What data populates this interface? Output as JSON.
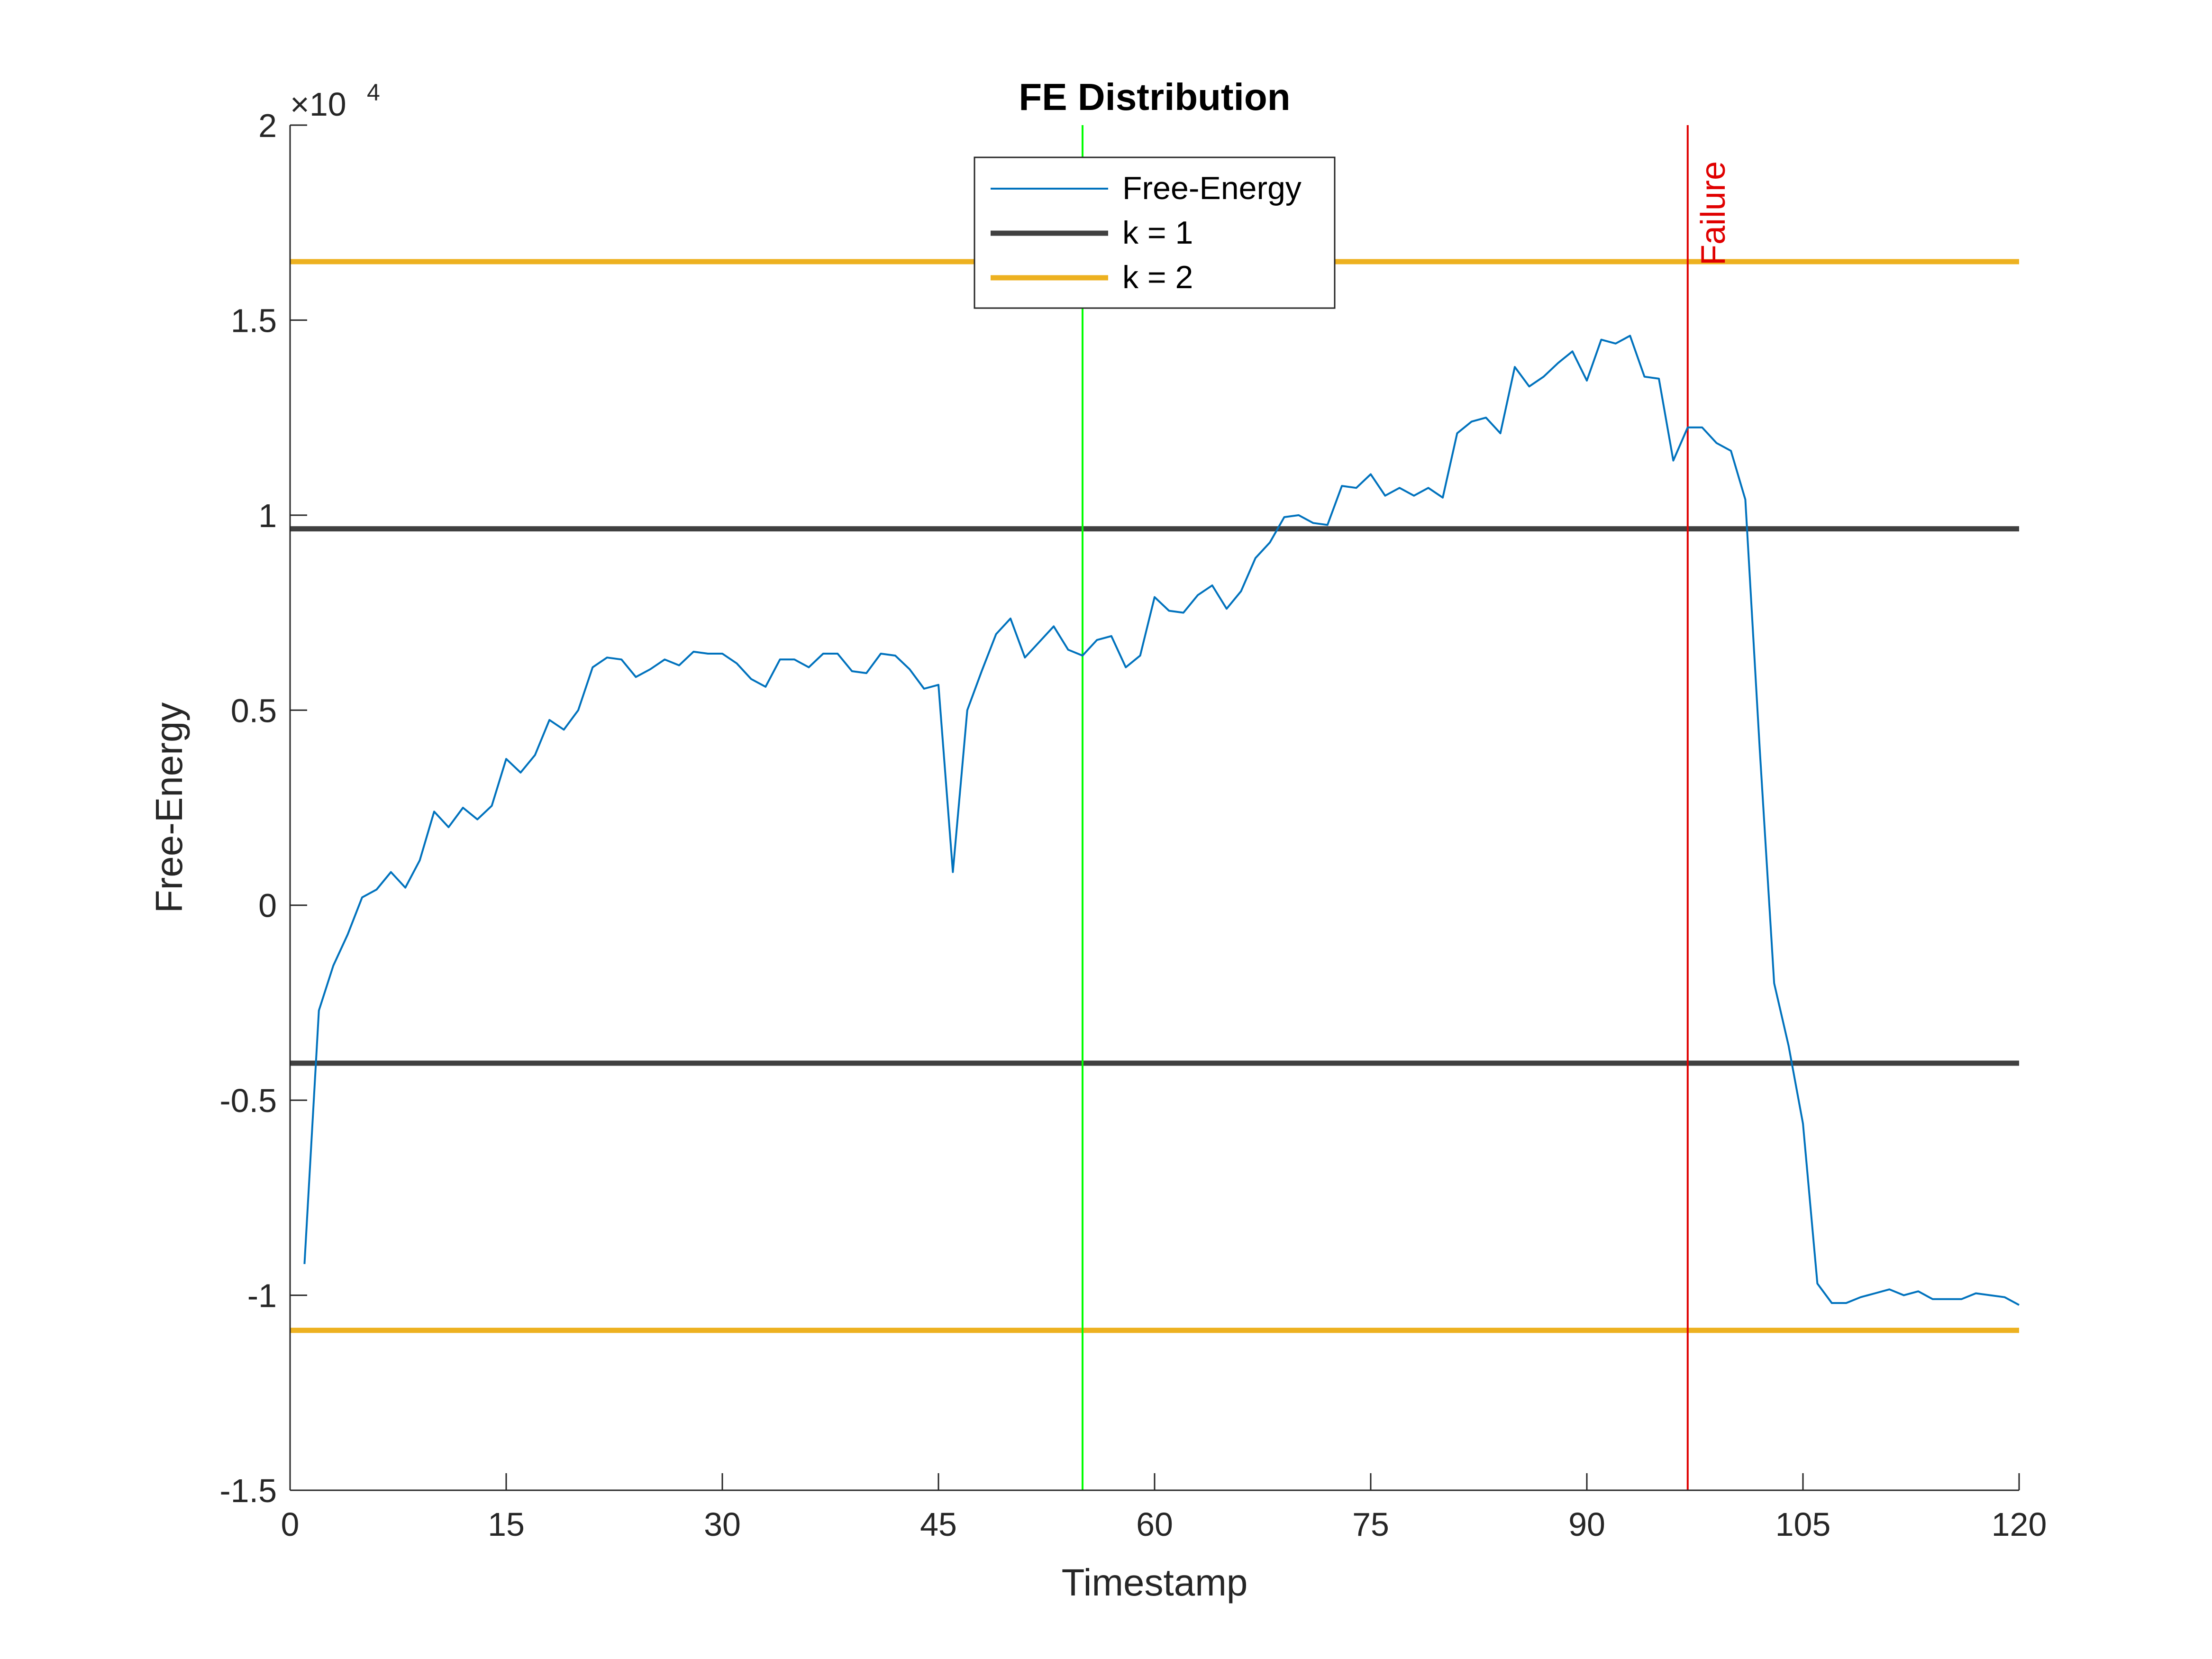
{
  "chart_data": {
    "type": "line",
    "title": "FE Distribution",
    "xlabel": "Timestamp",
    "ylabel": "Free-Energy",
    "exponent_label": "×10",
    "exponent_power": "4",
    "xlim": [
      0,
      120
    ],
    "ylim": [
      -15000,
      20000
    ],
    "xticks": [
      0,
      15,
      30,
      45,
      60,
      75,
      90,
      105,
      120
    ],
    "yticks": [
      -15000,
      -10000,
      -5000,
      0,
      5000,
      10000,
      15000,
      20000
    ],
    "ytick_labels": [
      "-1.5",
      "-1",
      "-0.5",
      "0",
      "0.5",
      "1",
      "1.5",
      "2"
    ],
    "grid": false,
    "legend_position": "top-center",
    "legend": [
      {
        "label": "Free-Energy",
        "color": "#0072BD",
        "style": "thin"
      },
      {
        "label": "k = 1",
        "color": "#404040",
        "style": "thick"
      },
      {
        "label": "k = 2",
        "color": "#EDB120",
        "style": "thick"
      }
    ],
    "series": [
      {
        "name": "Free-Energy",
        "color": "#0072BD",
        "x": [
          1,
          2,
          3,
          4,
          5,
          6,
          7,
          8,
          9,
          10,
          11,
          12,
          13,
          14,
          15,
          16,
          17,
          18,
          19,
          20,
          21,
          22,
          23,
          24,
          25,
          26,
          27,
          28,
          29,
          30,
          31,
          32,
          33,
          34,
          35,
          36,
          37,
          38,
          39,
          40,
          41,
          42,
          43,
          44,
          45,
          46,
          47,
          48,
          49,
          50,
          51,
          52,
          53,
          54,
          55,
          56,
          57,
          58,
          59,
          60,
          61,
          62,
          63,
          64,
          65,
          66,
          67,
          68,
          69,
          70,
          71,
          72,
          73,
          74,
          75,
          76,
          77,
          78,
          79,
          80,
          81,
          82,
          83,
          84,
          85,
          86,
          87,
          88,
          89,
          90,
          91,
          92,
          93,
          94,
          95,
          96,
          97,
          98,
          99,
          100,
          101,
          102,
          103,
          104,
          105,
          106,
          107,
          108,
          109,
          110,
          111,
          112,
          113,
          114,
          115,
          116,
          117,
          118,
          119,
          120
        ],
        "y": [
          -9200,
          -2700,
          -1550,
          -750,
          200,
          400,
          850,
          450,
          1150,
          2400,
          2000,
          2500,
          2200,
          2550,
          3750,
          3400,
          3850,
          4750,
          4500,
          5000,
          6100,
          6350,
          6300,
          5850,
          6050,
          6300,
          6150,
          6500,
          6450,
          6450,
          6200,
          5800,
          5600,
          6300,
          6300,
          6100,
          6450,
          6450,
          6000,
          5950,
          6450,
          6400,
          6050,
          5550,
          5650,
          850,
          5000,
          6000,
          6950,
          7350,
          6350,
          6750,
          7150,
          6550,
          6400,
          6800,
          6900,
          6100,
          6400,
          7900,
          7550,
          7500,
          7950,
          8200,
          7600,
          8050,
          8900,
          9300,
          9950,
          10000,
          9800,
          9750,
          10750,
          10700,
          11050,
          10500,
          10700,
          10500,
          10700,
          10450,
          12100,
          12400,
          12500,
          12100,
          13800,
          13300,
          13550,
          13900,
          14200,
          13450,
          14500,
          14400,
          14600,
          13550,
          13500,
          11400,
          12250,
          12250,
          11850,
          11650,
          10400,
          4000,
          -2000,
          -3600,
          -5600,
          -9700,
          -10200,
          -10200,
          -10050,
          -9950,
          -9850,
          -10000,
          -9900,
          -10100,
          -10100,
          -10100,
          -9950,
          -10000,
          -10050,
          -10250
        ]
      },
      {
        "name": "k = 1",
        "color": "#404040",
        "y_lines": [
          9650,
          -4050
        ]
      },
      {
        "name": "k = 2",
        "color": "#EDB120",
        "y_lines": [
          16500,
          -10900
        ]
      }
    ],
    "annotations": [
      {
        "type": "vline",
        "x": 55,
        "color": "#00FF00",
        "label": ""
      },
      {
        "type": "vline",
        "x": 97,
        "color": "#E00000",
        "label": "Failure"
      }
    ]
  }
}
